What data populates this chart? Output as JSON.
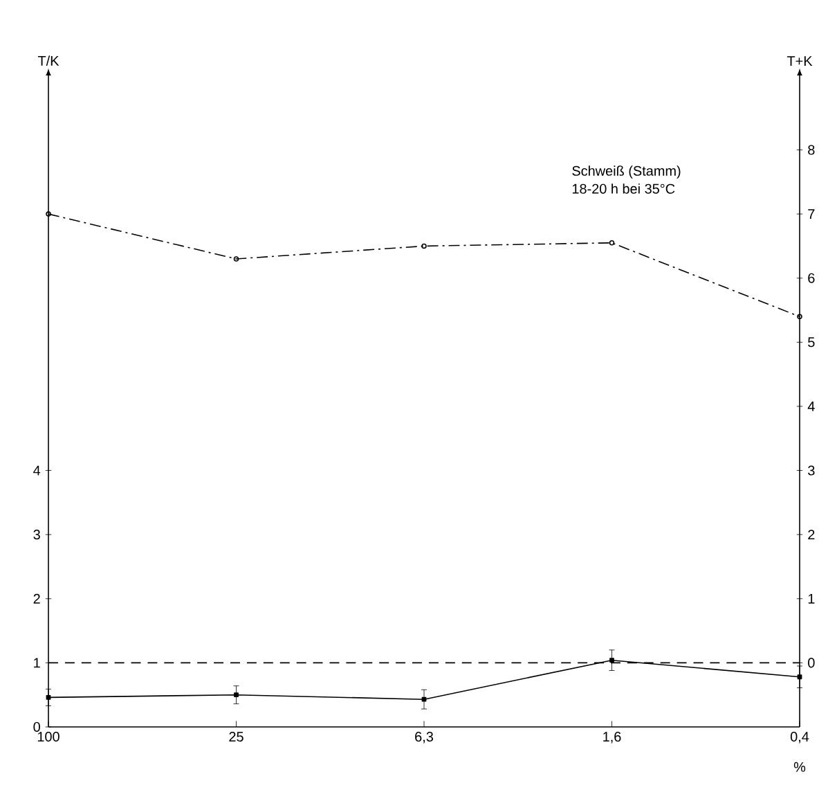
{
  "chart_data": {
    "type": "line",
    "annotations": [
      "Schweiß (Stamm)",
      "18-20 h bei 35°C"
    ],
    "xlabel": "%",
    "ylabel": "T/K",
    "y2label": "T+K",
    "categories": [
      "100",
      "25",
      "6,3",
      "1,6",
      "0,4"
    ],
    "series": [
      {
        "color": "#000000",
        "values": [
          0.46,
          0.5,
          0.43,
          1.04,
          0.78
        ],
        "errors": [
          0.13,
          0.14,
          0.15,
          0.16,
          0.17
        ],
        "marker": "square",
        "line_style": "solid"
      },
      {
        "axis": "y2",
        "color": "#000000",
        "values": [
          7.0,
          6.3,
          6.5,
          6.55,
          5.4
        ],
        "marker": "circle",
        "line_style": "dashdot"
      }
    ],
    "ylim": [
      0,
      10.15
    ],
    "yticks": [
      0,
      1,
      2,
      3,
      4
    ],
    "y2lim": [
      -1,
      9.15
    ],
    "y2ticks": [
      0,
      1,
      2,
      3,
      4,
      5,
      6,
      7,
      8
    ],
    "ref_lines": [
      {
        "axis": "y",
        "value": 1,
        "line_style": "dashed"
      }
    ]
  }
}
